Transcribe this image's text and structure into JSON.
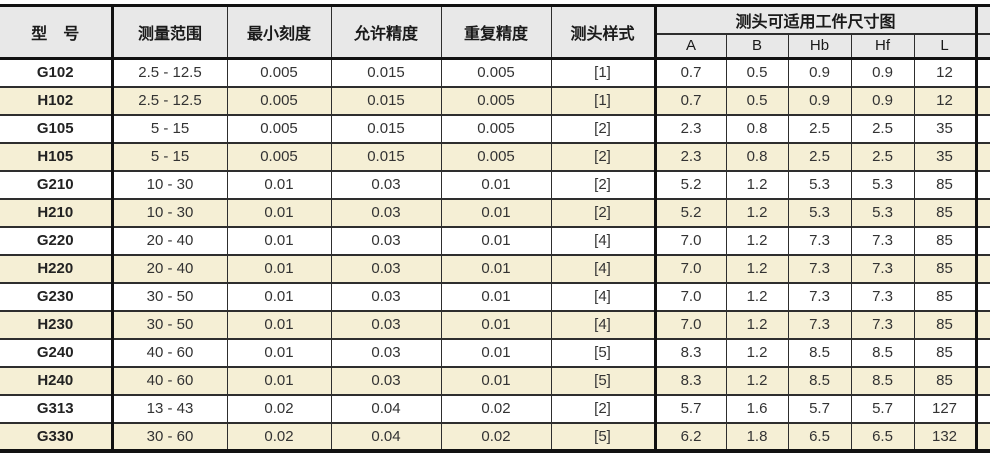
{
  "table": {
    "title_semantic": "probe-specification-table",
    "colors": {
      "header_bg": "#e8e8e8",
      "stripe_bg": "#f5efd5",
      "row_bg": "#ffffff",
      "thick_border": "#111111",
      "thin_border": "#2e2e2e",
      "text": "#333333"
    },
    "headers": {
      "model": "型　号",
      "range": "测量范围",
      "min_scale": "最小刻度",
      "allowed_accuracy": "允许精度",
      "repeat_accuracy": "重复精度",
      "probe_style": "测头样式",
      "size_group": "测头可适用工件尺寸图",
      "size_cols": {
        "a": "A",
        "b": "B",
        "hb": "Hb",
        "hf": "Hf",
        "l": "L"
      }
    },
    "rows": [
      {
        "model": "G102",
        "range": "2.5 - 12.5",
        "min_scale": "0.005",
        "allowed_accuracy": "0.015",
        "repeat_accuracy": "0.005",
        "probe_style": "[1]",
        "a": "0.7",
        "b": "0.5",
        "hb": "0.9",
        "hf": "0.9",
        "l": "12"
      },
      {
        "model": "H102",
        "range": "2.5 - 12.5",
        "min_scale": "0.005",
        "allowed_accuracy": "0.015",
        "repeat_accuracy": "0.005",
        "probe_style": "[1]",
        "a": "0.7",
        "b": "0.5",
        "hb": "0.9",
        "hf": "0.9",
        "l": "12"
      },
      {
        "model": "G105",
        "range": "5 - 15",
        "min_scale": "0.005",
        "allowed_accuracy": "0.015",
        "repeat_accuracy": "0.005",
        "probe_style": "[2]",
        "a": "2.3",
        "b": "0.8",
        "hb": "2.5",
        "hf": "2.5",
        "l": "35"
      },
      {
        "model": "H105",
        "range": "5 - 15",
        "min_scale": "0.005",
        "allowed_accuracy": "0.015",
        "repeat_accuracy": "0.005",
        "probe_style": "[2]",
        "a": "2.3",
        "b": "0.8",
        "hb": "2.5",
        "hf": "2.5",
        "l": "35"
      },
      {
        "model": "G210",
        "range": "10 - 30",
        "min_scale": "0.01",
        "allowed_accuracy": "0.03",
        "repeat_accuracy": "0.01",
        "probe_style": "[2]",
        "a": "5.2",
        "b": "1.2",
        "hb": "5.3",
        "hf": "5.3",
        "l": "85"
      },
      {
        "model": "H210",
        "range": "10 - 30",
        "min_scale": "0.01",
        "allowed_accuracy": "0.03",
        "repeat_accuracy": "0.01",
        "probe_style": "[2]",
        "a": "5.2",
        "b": "1.2",
        "hb": "5.3",
        "hf": "5.3",
        "l": "85"
      },
      {
        "model": "G220",
        "range": "20 - 40",
        "min_scale": "0.01",
        "allowed_accuracy": "0.03",
        "repeat_accuracy": "0.01",
        "probe_style": "[4]",
        "a": "7.0",
        "b": "1.2",
        "hb": "7.3",
        "hf": "7.3",
        "l": "85"
      },
      {
        "model": "H220",
        "range": "20 - 40",
        "min_scale": "0.01",
        "allowed_accuracy": "0.03",
        "repeat_accuracy": "0.01",
        "probe_style": "[4]",
        "a": "7.0",
        "b": "1.2",
        "hb": "7.3",
        "hf": "7.3",
        "l": "85"
      },
      {
        "model": "G230",
        "range": "30 - 50",
        "min_scale": "0.01",
        "allowed_accuracy": "0.03",
        "repeat_accuracy": "0.01",
        "probe_style": "[4]",
        "a": "7.0",
        "b": "1.2",
        "hb": "7.3",
        "hf": "7.3",
        "l": "85"
      },
      {
        "model": "H230",
        "range": "30 - 50",
        "min_scale": "0.01",
        "allowed_accuracy": "0.03",
        "repeat_accuracy": "0.01",
        "probe_style": "[4]",
        "a": "7.0",
        "b": "1.2",
        "hb": "7.3",
        "hf": "7.3",
        "l": "85"
      },
      {
        "model": "G240",
        "range": "40 - 60",
        "min_scale": "0.01",
        "allowed_accuracy": "0.03",
        "repeat_accuracy": "0.01",
        "probe_style": "[5]",
        "a": "8.3",
        "b": "1.2",
        "hb": "8.5",
        "hf": "8.5",
        "l": "85"
      },
      {
        "model": "H240",
        "range": "40 - 60",
        "min_scale": "0.01",
        "allowed_accuracy": "0.03",
        "repeat_accuracy": "0.01",
        "probe_style": "[5]",
        "a": "8.3",
        "b": "1.2",
        "hb": "8.5",
        "hf": "8.5",
        "l": "85"
      },
      {
        "model": "G313",
        "range": "13 - 43",
        "min_scale": "0.02",
        "allowed_accuracy": "0.04",
        "repeat_accuracy": "0.02",
        "probe_style": "[2]",
        "a": "5.7",
        "b": "1.6",
        "hb": "5.7",
        "hf": "5.7",
        "l": "127"
      },
      {
        "model": "G330",
        "range": "30 - 60",
        "min_scale": "0.02",
        "allowed_accuracy": "0.04",
        "repeat_accuracy": "0.02",
        "probe_style": "[5]",
        "a": "6.2",
        "b": "1.8",
        "hb": "6.5",
        "hf": "6.5",
        "l": "132"
      }
    ]
  }
}
